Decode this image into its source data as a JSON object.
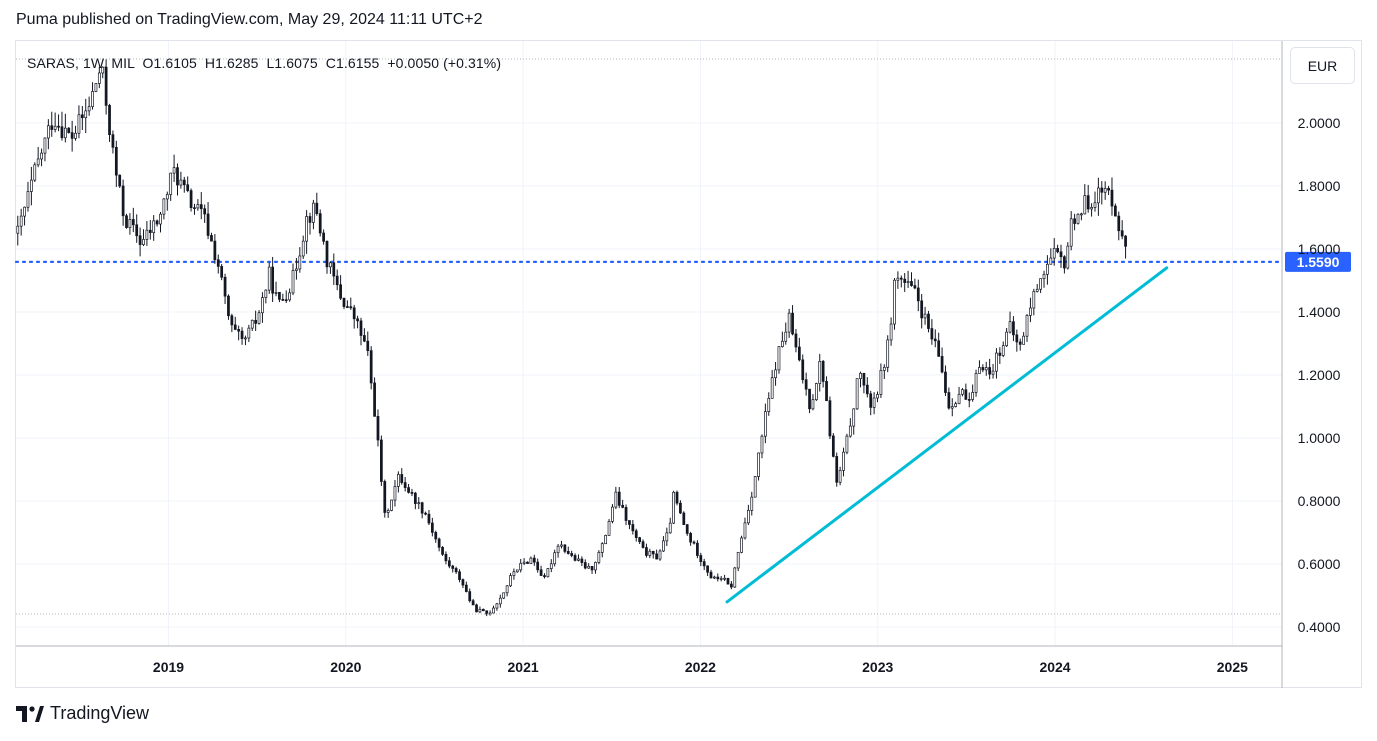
{
  "header": {
    "published_line": "Puma published on TradingView.com, May 29, 2024 11:11 UTC+2"
  },
  "legend": {
    "symbol": "SARAS, 1W, MIL",
    "open": "O1.6105",
    "high": "H1.6285",
    "low": "L1.6075",
    "close": "C1.6155",
    "change": "+0.0050 (+0.31%)"
  },
  "currency_button": "EUR",
  "footer": {
    "brand": "TradingView"
  },
  "colors": {
    "up": "#ffffff",
    "down": "#131722",
    "wick": "#131722",
    "trendline": "#00bcd4",
    "level_line": "#2962ff",
    "grid": "#f0f3fa",
    "axis_text": "#131722"
  },
  "chart_data": {
    "type": "candlestick",
    "symbol": "SARAS",
    "interval": "1W",
    "exchange": "MIL",
    "currency": "EUR",
    "y_ticks": [
      "2.0000",
      "1.8000",
      "1.6000",
      "1.4000",
      "1.2000",
      "1.0000",
      "0.8000",
      "0.6000",
      "0.4000"
    ],
    "y_tick_values": [
      2.0,
      1.8,
      1.6,
      1.4,
      1.2,
      1.0,
      0.8,
      0.6,
      0.4
    ],
    "ylim": [
      0.34,
      2.26
    ],
    "x_ticks": [
      "2019",
      "2020",
      "2021",
      "2022",
      "2023",
      "2024",
      "2025"
    ],
    "x_tick_years": [
      2019,
      2020,
      2021,
      2022,
      2023,
      2024,
      2025
    ],
    "xlim": [
      2018.14,
      2025.28
    ],
    "horizontal_level": {
      "value": 1.559,
      "label": "1.5590",
      "style": "dotted"
    },
    "trendline": {
      "from": {
        "x": 2022.15,
        "y": 0.48
      },
      "to": {
        "x": 2024.63,
        "y": 1.54
      }
    },
    "price_path": [
      [
        2018.15,
        1.65
      ],
      [
        2018.25,
        1.85
      ],
      [
        2018.35,
        2.02
      ],
      [
        2018.45,
        1.95
      ],
      [
        2018.55,
        2.05
      ],
      [
        2018.62,
        2.18
      ],
      [
        2018.7,
        1.85
      ],
      [
        2018.75,
        1.7
      ],
      [
        2018.85,
        1.62
      ],
      [
        2018.95,
        1.7
      ],
      [
        2019.03,
        1.85
      ],
      [
        2019.12,
        1.75
      ],
      [
        2019.2,
        1.7
      ],
      [
        2019.28,
        1.55
      ],
      [
        2019.35,
        1.35
      ],
      [
        2019.42,
        1.3
      ],
      [
        2019.5,
        1.38
      ],
      [
        2019.57,
        1.52
      ],
      [
        2019.62,
        1.42
      ],
      [
        2019.7,
        1.5
      ],
      [
        2019.78,
        1.7
      ],
      [
        2019.83,
        1.73
      ],
      [
        2019.9,
        1.55
      ],
      [
        2019.97,
        1.45
      ],
      [
        2020.05,
        1.38
      ],
      [
        2020.12,
        1.28
      ],
      [
        2020.17,
        1.05
      ],
      [
        2020.22,
        0.75
      ],
      [
        2020.3,
        0.88
      ],
      [
        2020.37,
        0.82
      ],
      [
        2020.45,
        0.76
      ],
      [
        2020.55,
        0.62
      ],
      [
        2020.65,
        0.55
      ],
      [
        2020.72,
        0.46
      ],
      [
        2020.8,
        0.44
      ],
      [
        2020.88,
        0.5
      ],
      [
        2020.95,
        0.58
      ],
      [
        2021.05,
        0.62
      ],
      [
        2021.12,
        0.55
      ],
      [
        2021.2,
        0.67
      ],
      [
        2021.28,
        0.62
      ],
      [
        2021.38,
        0.58
      ],
      [
        2021.45,
        0.66
      ],
      [
        2021.52,
        0.82
      ],
      [
        2021.6,
        0.72
      ],
      [
        2021.68,
        0.64
      ],
      [
        2021.75,
        0.62
      ],
      [
        2021.82,
        0.7
      ],
      [
        2021.85,
        0.82
      ],
      [
        2021.92,
        0.7
      ],
      [
        2022.0,
        0.62
      ],
      [
        2022.07,
        0.55
      ],
      [
        2022.12,
        0.56
      ],
      [
        2022.17,
        0.52
      ],
      [
        2022.23,
        0.68
      ],
      [
        2022.3,
        0.85
      ],
      [
        2022.36,
        1.05
      ],
      [
        2022.43,
        1.25
      ],
      [
        2022.5,
        1.38
      ],
      [
        2022.55,
        1.25
      ],
      [
        2022.62,
        1.1
      ],
      [
        2022.68,
        1.25
      ],
      [
        2022.73,
        1.02
      ],
      [
        2022.77,
        0.85
      ],
      [
        2022.83,
        1.0
      ],
      [
        2022.9,
        1.22
      ],
      [
        2022.95,
        1.1
      ],
      [
        2023.0,
        1.15
      ],
      [
        2023.06,
        1.3
      ],
      [
        2023.1,
        1.52
      ],
      [
        2023.17,
        1.48
      ],
      [
        2023.22,
        1.45
      ],
      [
        2023.28,
        1.35
      ],
      [
        2023.35,
        1.25
      ],
      [
        2023.4,
        1.1
      ],
      [
        2023.47,
        1.15
      ],
      [
        2023.52,
        1.1
      ],
      [
        2023.58,
        1.25
      ],
      [
        2023.63,
        1.2
      ],
      [
        2023.7,
        1.3
      ],
      [
        2023.75,
        1.35
      ],
      [
        2023.8,
        1.28
      ],
      [
        2023.85,
        1.4
      ],
      [
        2023.92,
        1.52
      ],
      [
        2024.0,
        1.58
      ],
      [
        2024.05,
        1.55
      ],
      [
        2024.1,
        1.7
      ],
      [
        2024.15,
        1.73
      ],
      [
        2024.22,
        1.77
      ],
      [
        2024.28,
        1.78
      ],
      [
        2024.33,
        1.76
      ],
      [
        2024.38,
        1.62
      ],
      [
        2024.4,
        1.615
      ]
    ]
  }
}
